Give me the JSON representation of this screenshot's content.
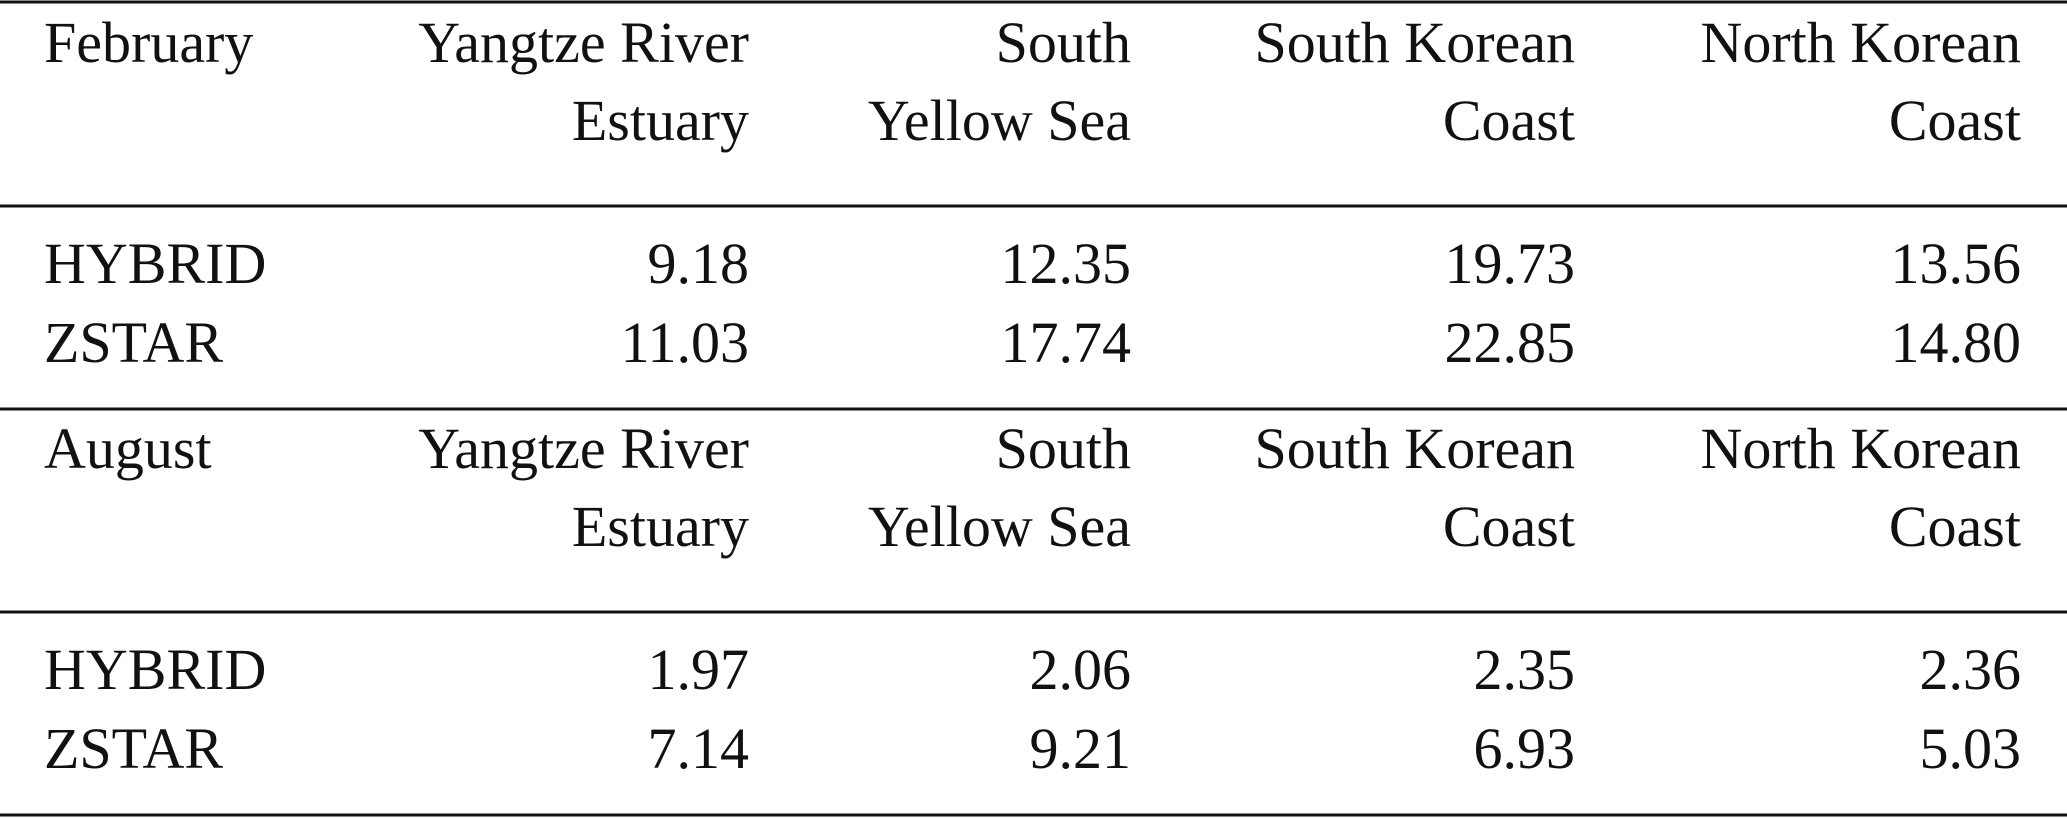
{
  "table": {
    "sections": [
      {
        "header": [
          "February",
          [
            "Yangtze River",
            "Estuary"
          ],
          [
            "South",
            "Yellow Sea"
          ],
          [
            "South Korean",
            "Coast"
          ],
          [
            "North Korean",
            "Coast"
          ]
        ],
        "rows": [
          [
            "HYBRID",
            "9.18",
            "12.35",
            "19.73",
            "13.56"
          ],
          [
            "ZSTAR",
            "11.03",
            "17.74",
            "22.85",
            "14.80"
          ]
        ]
      },
      {
        "header": [
          "August",
          [
            "Yangtze River",
            "Estuary"
          ],
          [
            "South",
            "Yellow Sea"
          ],
          [
            "South Korean",
            "Coast"
          ],
          [
            "North Korean",
            "Coast"
          ]
        ],
        "rows": [
          [
            "HYBRID",
            "1.97",
            "2.06",
            "2.35",
            "2.36"
          ],
          [
            "ZSTAR",
            "7.14",
            "9.21",
            "6.93",
            "5.03"
          ]
        ]
      }
    ]
  }
}
